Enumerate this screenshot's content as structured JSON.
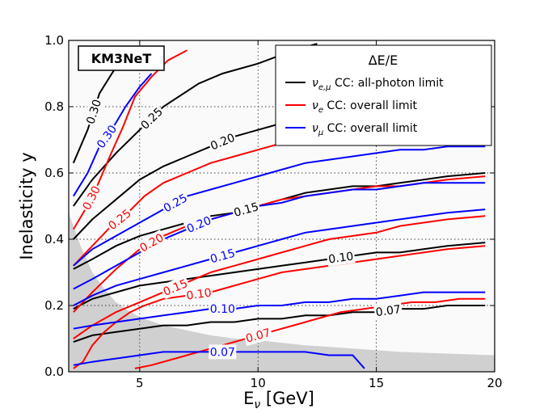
{
  "chart_data": {
    "type": "line",
    "title": "",
    "badge": "KM3NeT",
    "xlabel": "E",
    "xlabel_sub": "ν",
    "xlabel_unit": " [GeV]",
    "ylabel": "Inelasticity y",
    "xlim": [
      2,
      20
    ],
    "ylim": [
      0,
      1
    ],
    "xticks": [
      5,
      10,
      15,
      20
    ],
    "yticks": [
      0.0,
      0.2,
      0.4,
      0.6,
      0.8,
      1.0
    ],
    "ytick_labels": [
      "0.0",
      "0.2",
      "0.4",
      "0.6",
      "0.8",
      "1.0"
    ],
    "grid": true,
    "legend": {
      "title": "ΔE/E",
      "placement": "top-right",
      "entries": [
        {
          "symbol": "ν",
          "sub": "e,μ",
          "text": " CC: all-photon limit",
          "color": "#000000"
        },
        {
          "symbol": "ν",
          "sub": "e",
          "text": " CC: overall limit",
          "color": "#ff0000"
        },
        {
          "symbol": "ν",
          "sub": "μ",
          "text": " CC: overall limit",
          "color": "#0000ff"
        }
      ]
    },
    "shaded_region": {
      "description": "grey excluded region",
      "x": [
        2,
        2.5,
        3,
        3.5,
        4,
        4.5,
        5,
        6,
        7,
        8,
        9,
        10,
        12,
        14,
        16,
        18,
        20
      ],
      "y": [
        0.48,
        0.38,
        0.3,
        0.25,
        0.21,
        0.185,
        0.165,
        0.14,
        0.125,
        0.11,
        0.1,
        0.095,
        0.08,
        0.07,
        0.06,
        0.055,
        0.05
      ]
    },
    "series": [
      {
        "name": "ν_e,μ CC: all-photon limit",
        "level": "0.30",
        "color": "#000000",
        "x": [
          2.2,
          2.8,
          3.3,
          4.0,
          4.5
        ],
        "y": [
          0.63,
          0.73,
          0.84,
          0.92,
          0.97
        ],
        "label_at": 1
      },
      {
        "name": "ν_e,μ CC: all-photon limit",
        "level": "0.25",
        "color": "#000000",
        "x": [
          2.2,
          3.0,
          4.0,
          5.0,
          6.0,
          7.5,
          8.5,
          10,
          11.5,
          12.5
        ],
        "y": [
          0.5,
          0.58,
          0.66,
          0.73,
          0.8,
          0.87,
          0.9,
          0.93,
          0.97,
          0.99
        ],
        "label_at": 3
      },
      {
        "name": "ν_e,μ CC: all-photon limit",
        "level": "0.20",
        "color": "#000000",
        "x": [
          2.2,
          3,
          4,
          5,
          6,
          7,
          8,
          9,
          10,
          11,
          12,
          13,
          14,
          15,
          16,
          17,
          18,
          19.6
        ],
        "y": [
          0.4,
          0.46,
          0.52,
          0.58,
          0.62,
          0.65,
          0.68,
          0.71,
          0.73,
          0.75,
          0.76,
          0.77,
          0.78,
          0.79,
          0.79,
          0.8,
          0.81,
          0.81
        ],
        "label_at": 6
      },
      {
        "name": "ν_e,μ CC: all-photon limit",
        "level": "0.15",
        "color": "#000000",
        "x": [
          2.2,
          3,
          4,
          5,
          6,
          7,
          8,
          9,
          10,
          11,
          12,
          13,
          14,
          15,
          16,
          17,
          18,
          19.6
        ],
        "y": [
          0.31,
          0.34,
          0.38,
          0.41,
          0.43,
          0.45,
          0.47,
          0.48,
          0.5,
          0.52,
          0.54,
          0.55,
          0.56,
          0.56,
          0.57,
          0.58,
          0.59,
          0.6
        ],
        "label_at": 7
      },
      {
        "name": "ν_e,μ CC: all-photon limit",
        "level": "0.10",
        "color": "#000000",
        "x": [
          2.2,
          3,
          4,
          5,
          6,
          7,
          8,
          9,
          10,
          11,
          12,
          13,
          14,
          15,
          16,
          17,
          18,
          19.6
        ],
        "y": [
          0.19,
          0.22,
          0.24,
          0.26,
          0.27,
          0.28,
          0.29,
          0.3,
          0.31,
          0.32,
          0.33,
          0.34,
          0.35,
          0.36,
          0.36,
          0.37,
          0.38,
          0.39
        ],
        "label_at": 11
      },
      {
        "name": "ν_e,μ CC: all-photon limit",
        "level": "0.07",
        "color": "#000000",
        "x": [
          2.2,
          3,
          4,
          5,
          6,
          7,
          8,
          9,
          10,
          11,
          12,
          13,
          14,
          15,
          16,
          17,
          18,
          19.6
        ],
        "y": [
          0.09,
          0.11,
          0.12,
          0.13,
          0.14,
          0.14,
          0.15,
          0.15,
          0.16,
          0.16,
          0.17,
          0.17,
          0.18,
          0.18,
          0.19,
          0.19,
          0.2,
          0.2
        ],
        "label_at": 13
      },
      {
        "name": "ν_e CC: overall limit",
        "level": "0.30",
        "color": "#ff0000",
        "x": [
          2.2,
          2.7,
          3.2,
          3.8,
          4.3,
          4.8,
          5.5,
          6.2,
          7.0
        ],
        "y": [
          0.43,
          0.49,
          0.56,
          0.66,
          0.74,
          0.83,
          0.89,
          0.94,
          0.97
        ],
        "label_at": 1
      },
      {
        "name": "ν_e CC: overall limit",
        "level": "0.25",
        "color": "#ff0000",
        "x": [
          2.2,
          3,
          3.8,
          4.5,
          5.2,
          6.0,
          7,
          8,
          9,
          10,
          11,
          12,
          13,
          14,
          15,
          16,
          17,
          18,
          19.6
        ],
        "y": [
          0.32,
          0.38,
          0.44,
          0.48,
          0.53,
          0.57,
          0.6,
          0.63,
          0.65,
          0.67,
          0.69,
          0.7,
          0.71,
          0.72,
          0.73,
          0.73,
          0.74,
          0.74,
          0.75
        ],
        "label_at": 2
      },
      {
        "name": "ν_e CC: overall limit",
        "level": "0.20",
        "color": "#ff0000",
        "x": [
          2.2,
          3,
          4,
          5,
          6,
          7,
          8,
          9,
          10,
          11,
          12,
          13,
          14,
          15,
          16,
          17,
          18,
          19.6
        ],
        "y": [
          0.18,
          0.24,
          0.31,
          0.37,
          0.41,
          0.44,
          0.46,
          0.48,
          0.5,
          0.52,
          0.53,
          0.54,
          0.55,
          0.56,
          0.56,
          0.57,
          0.58,
          0.59
        ],
        "label_at": 3
      },
      {
        "name": "ν_e CC: overall limit",
        "level": "0.15",
        "color": "#ff0000",
        "x": [
          2.2,
          3,
          4,
          5,
          6,
          7,
          8,
          9,
          10,
          11,
          12,
          13,
          14,
          15,
          16,
          17,
          18,
          19.6
        ],
        "y": [
          0.1,
          0.14,
          0.18,
          0.21,
          0.24,
          0.27,
          0.3,
          0.32,
          0.34,
          0.36,
          0.38,
          0.4,
          0.41,
          0.42,
          0.44,
          0.45,
          0.46,
          0.47
        ],
        "label_at": 4
      },
      {
        "name": "ν_e CC: overall limit",
        "level": "0.10",
        "color": "#ff0000",
        "x": [
          2.2,
          2.6,
          3.0,
          3.5,
          4.0,
          4.6,
          5.2,
          6,
          7,
          8,
          9,
          10,
          11,
          12,
          13,
          14,
          15,
          16,
          17,
          18,
          19.6
        ],
        "y": [
          0.01,
          0.03,
          0.08,
          0.12,
          0.15,
          0.18,
          0.2,
          0.22,
          0.23,
          0.24,
          0.26,
          0.28,
          0.3,
          0.31,
          0.32,
          0.33,
          0.34,
          0.35,
          0.36,
          0.37,
          0.38
        ],
        "label_at": 8
      },
      {
        "name": "ν_e CC: overall limit",
        "level": "0.07",
        "color": "#ff0000",
        "x": [
          4.8,
          5.5,
          6.5,
          7.5,
          8.5,
          9.5,
          10.5,
          11.5,
          12.5,
          13.5,
          14.5,
          15.5,
          16.5,
          17.5,
          18.5,
          19.6
        ],
        "y": [
          0.01,
          0.02,
          0.04,
          0.06,
          0.08,
          0.1,
          0.12,
          0.14,
          0.16,
          0.18,
          0.19,
          0.2,
          0.21,
          0.21,
          0.22,
          0.22
        ],
        "label_at": 5
      },
      {
        "name": "ν_μ CC: overall limit",
        "level": "0.30",
        "color": "#0000ff",
        "x": [
          2.2,
          2.8,
          3.3,
          3.9,
          4.4,
          5.0,
          5.5
        ],
        "y": [
          0.53,
          0.6,
          0.68,
          0.74,
          0.8,
          0.86,
          0.9
        ],
        "label_at": 2
      },
      {
        "name": "ν_μ CC: overall limit",
        "level": "0.25",
        "color": "#0000ff",
        "x": [
          2.2,
          3,
          4,
          5,
          6,
          7,
          8,
          9,
          10,
          11,
          12,
          13,
          14,
          15,
          16,
          17,
          18,
          19.6
        ],
        "y": [
          0.32,
          0.37,
          0.41,
          0.45,
          0.49,
          0.53,
          0.55,
          0.57,
          0.59,
          0.61,
          0.63,
          0.64,
          0.65,
          0.66,
          0.67,
          0.67,
          0.68,
          0.68
        ],
        "label_at": 4
      },
      {
        "name": "ν_μ CC: overall limit",
        "level": "0.20",
        "color": "#0000ff",
        "x": [
          2.2,
          3,
          4,
          5,
          6,
          7,
          8,
          9,
          10,
          11,
          12,
          13,
          14,
          15,
          16,
          17,
          18,
          19.6
        ],
        "y": [
          0.25,
          0.28,
          0.32,
          0.36,
          0.4,
          0.43,
          0.46,
          0.48,
          0.5,
          0.51,
          0.53,
          0.54,
          0.55,
          0.55,
          0.56,
          0.57,
          0.57,
          0.57
        ],
        "label_at": 5
      },
      {
        "name": "ν_μ CC: overall limit",
        "level": "0.15",
        "color": "#0000ff",
        "x": [
          2.2,
          3,
          4,
          5,
          6,
          7,
          8,
          9,
          10,
          11,
          12,
          13,
          14,
          15,
          16,
          17,
          18,
          19.6
        ],
        "y": [
          0.2,
          0.23,
          0.26,
          0.28,
          0.3,
          0.32,
          0.34,
          0.36,
          0.38,
          0.4,
          0.42,
          0.43,
          0.44,
          0.45,
          0.46,
          0.47,
          0.48,
          0.49
        ],
        "label_at": 6
      },
      {
        "name": "ν_μ CC: overall limit",
        "level": "0.10",
        "color": "#0000ff",
        "x": [
          2.2,
          3,
          4,
          5,
          6,
          7,
          8,
          9,
          10,
          11,
          12,
          13,
          14,
          15,
          16,
          17,
          18,
          19.6
        ],
        "y": [
          0.13,
          0.14,
          0.15,
          0.16,
          0.17,
          0.18,
          0.19,
          0.19,
          0.2,
          0.2,
          0.21,
          0.21,
          0.22,
          0.22,
          0.23,
          0.24,
          0.24,
          0.24
        ],
        "label_at": 6
      },
      {
        "name": "ν_μ CC: overall limit",
        "level": "0.07",
        "color": "#0000ff",
        "x": [
          2.2,
          3,
          4,
          5,
          6,
          7,
          8,
          9,
          10,
          11,
          12,
          13,
          14,
          14.5
        ],
        "y": [
          0.02,
          0.03,
          0.04,
          0.05,
          0.06,
          0.06,
          0.06,
          0.06,
          0.06,
          0.06,
          0.06,
          0.05,
          0.05,
          0.01
        ],
        "label_at": 6
      }
    ]
  }
}
